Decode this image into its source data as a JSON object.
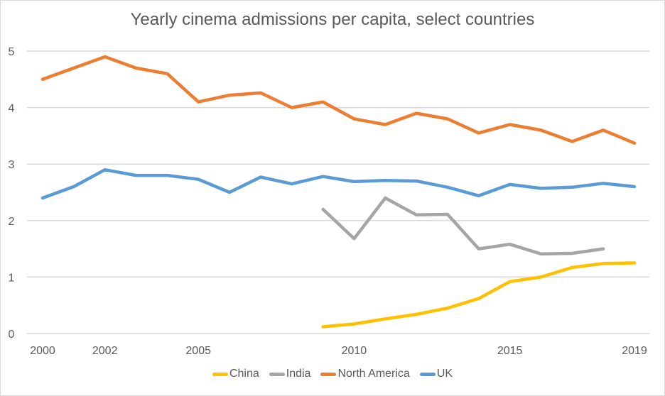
{
  "chart_data": {
    "type": "line",
    "title": "Yearly cinema admissions per capita, select countries",
    "xlabel": "",
    "ylabel": "",
    "x": [
      2000,
      2001,
      2002,
      2003,
      2004,
      2005,
      2006,
      2007,
      2008,
      2009,
      2010,
      2011,
      2012,
      2013,
      2014,
      2015,
      2016,
      2017,
      2018,
      2019
    ],
    "x_tick_labels": [
      "2000",
      "2002",
      "2005",
      "2010",
      "2015",
      "2019"
    ],
    "y_tick_labels": [
      "0",
      "1",
      "2",
      "3",
      "4",
      "5"
    ],
    "ylim": [
      0,
      5
    ],
    "grid": true,
    "legend_position": "bottom",
    "series": [
      {
        "name": "China",
        "color": "#FFC000",
        "values": [
          null,
          null,
          null,
          null,
          null,
          null,
          null,
          null,
          null,
          0.12,
          0.17,
          0.26,
          0.34,
          0.45,
          0.62,
          0.92,
          1.0,
          1.17,
          1.24,
          1.25
        ]
      },
      {
        "name": "India",
        "color": "#A5A5A5",
        "values": [
          null,
          null,
          null,
          null,
          null,
          null,
          null,
          null,
          null,
          2.2,
          1.68,
          2.4,
          2.1,
          2.11,
          1.5,
          1.58,
          1.41,
          1.42,
          1.5,
          null
        ]
      },
      {
        "name": "North America",
        "color": "#ED7D31",
        "values": [
          4.5,
          4.7,
          4.9,
          4.7,
          4.6,
          4.1,
          4.22,
          4.26,
          4.0,
          4.1,
          3.8,
          3.7,
          3.9,
          3.8,
          3.55,
          3.7,
          3.6,
          3.4,
          3.6,
          3.37
        ]
      },
      {
        "name": "UK",
        "color": "#5B9BD5",
        "values": [
          2.4,
          2.6,
          2.9,
          2.8,
          2.8,
          2.73,
          2.5,
          2.77,
          2.65,
          2.78,
          2.69,
          2.71,
          2.7,
          2.59,
          2.44,
          2.64,
          2.57,
          2.59,
          2.66,
          2.6
        ]
      }
    ]
  }
}
